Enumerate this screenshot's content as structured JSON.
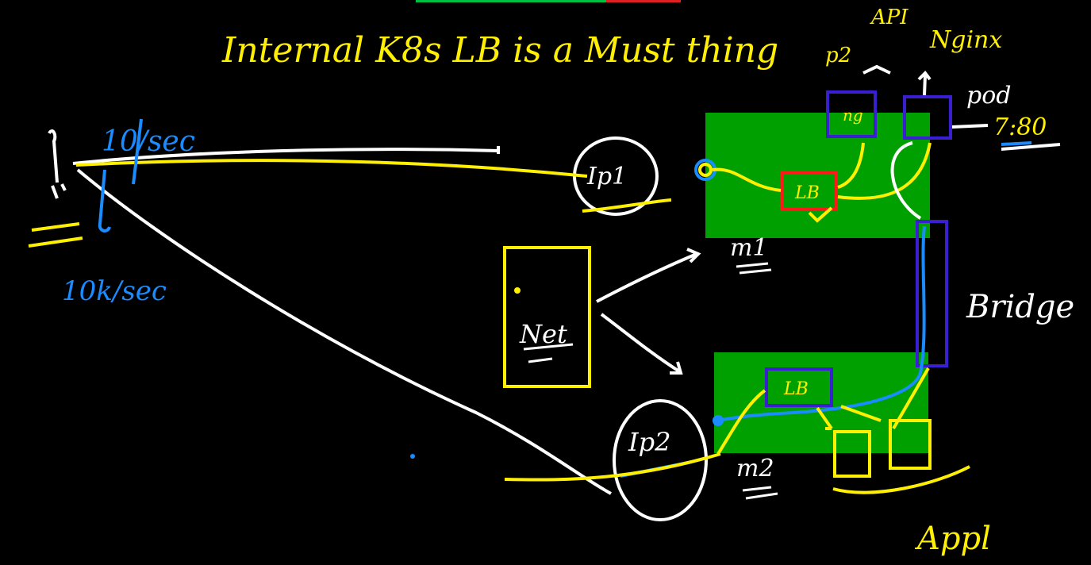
{
  "title": "Internal K8s LB is a Must thing",
  "top_labels": {
    "p2": "p2",
    "api": "API",
    "nginx": "Nginx",
    "pod": "pod",
    "port": "7:80"
  },
  "left": {
    "rate_top": "10/sec",
    "rate_bottom": "10k/sec"
  },
  "nodes": {
    "ip1": "Ip1",
    "ip2": "Ip2",
    "m1": "m1",
    "m2": "m2",
    "lb_top": "LB",
    "lb_bottom": "LB",
    "ng": "ng",
    "net": "Net"
  },
  "right_labels": {
    "bridge": "Bridge",
    "appl": "Appl"
  },
  "colors": {
    "node_fill": "#00a000",
    "yellow": "#ffef00",
    "white": "#ffffff",
    "blue": "#1a8cff",
    "indigo": "#3a1fd0",
    "red": "#ff1a1a"
  }
}
